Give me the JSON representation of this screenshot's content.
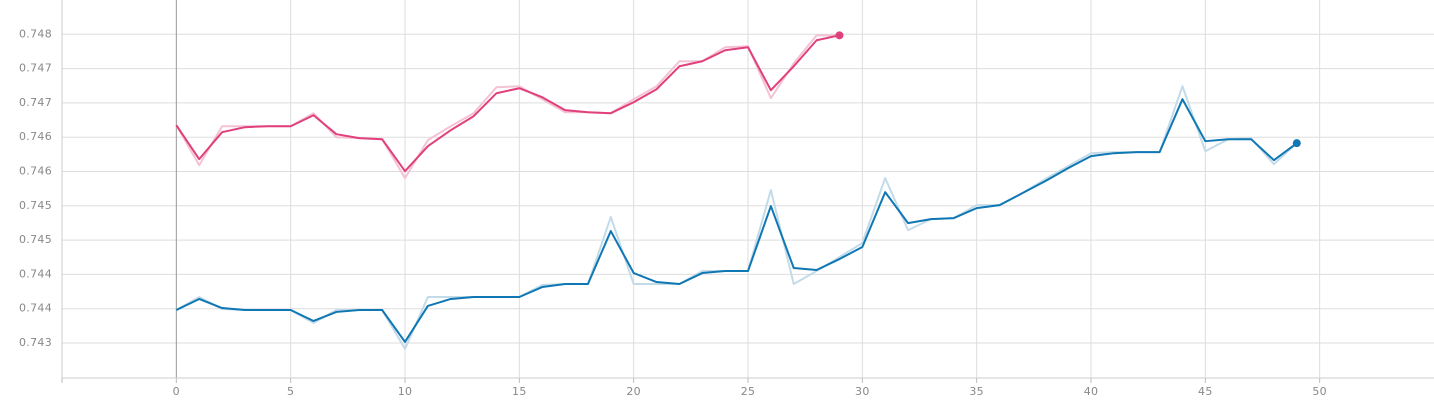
{
  "chart_data": {
    "type": "line",
    "xlim": [
      -5,
      55
    ],
    "xticks": [
      0,
      5,
      10,
      15,
      20,
      25,
      30,
      35,
      40,
      45,
      50
    ],
    "ylim": [
      0.74299,
      0.7485
    ],
    "yticks": [
      {
        "value": 0.748,
        "label": "0.748"
      },
      {
        "value": 0.7475,
        "label": "0.747"
      },
      {
        "value": 0.747,
        "label": "0.747"
      },
      {
        "value": 0.7465,
        "label": "0.746"
      },
      {
        "value": 0.746,
        "label": "0.746"
      },
      {
        "value": 0.7455,
        "label": "0.745"
      },
      {
        "value": 0.745,
        "label": "0.745"
      },
      {
        "value": 0.7445,
        "label": "0.744"
      },
      {
        "value": 0.744,
        "label": "0.744"
      },
      {
        "value": 0.7435,
        "label": "0.743"
      }
    ],
    "grid": true,
    "series": [
      {
        "color": "#f4c2d4",
        "width": 2,
        "x": [
          0,
          1,
          2,
          3,
          4,
          5,
          6,
          7,
          8,
          9,
          10,
          11,
          12,
          13,
          14,
          15,
          16,
          17,
          18,
          19,
          20,
          21,
          22,
          23,
          24,
          25,
          26,
          27,
          28,
          29
        ],
        "values": [
          0.746675,
          0.746093,
          0.74666,
          0.74666,
          0.74666,
          0.74666,
          0.74685,
          0.7465,
          0.746486,
          0.746471,
          0.745903,
          0.746457,
          0.74666,
          0.74685,
          0.747228,
          0.747243,
          0.747053,
          0.746864,
          0.746864,
          0.74685,
          0.747053,
          0.747243,
          0.747607,
          0.747607,
          0.747811,
          0.747825,
          0.747068,
          0.747578,
          0.747985,
          0.747985
        ]
      },
      {
        "color": "#c3dbe9",
        "width": 2,
        "x": [
          0,
          1,
          2,
          3,
          4,
          5,
          6,
          7,
          8,
          9,
          10,
          11,
          12,
          13,
          14,
          15,
          16,
          17,
          18,
          19,
          20,
          21,
          22,
          23,
          24,
          25,
          26,
          27,
          28,
          29,
          30,
          31,
          32,
          33,
          34,
          35,
          36,
          37,
          38,
          39,
          40,
          41,
          42,
          43,
          44,
          45,
          46,
          47,
          48,
          49
        ],
        "values": [
          0.743981,
          0.744171,
          0.743995,
          0.743981,
          0.743981,
          0.743981,
          0.743792,
          0.743981,
          0.743981,
          0.743981,
          0.743414,
          0.744171,
          0.744171,
          0.744171,
          0.744171,
          0.744171,
          0.744345,
          0.74436,
          0.74436,
          0.745336,
          0.74436,
          0.74436,
          0.74436,
          0.744549,
          0.744549,
          0.744549,
          0.745729,
          0.74436,
          0.744549,
          0.744753,
          0.744958,
          0.745904,
          0.745146,
          0.745306,
          0.745321,
          0.74551,
          0.74551,
          0.745685,
          0.745889,
          0.746078,
          0.746267,
          0.746282,
          0.746282,
          0.746282,
          0.747243,
          0.746296,
          0.746471,
          0.746485,
          0.746107,
          0.746413
        ]
      },
      {
        "color": "#e0407b",
        "width": 2,
        "end_dot": true,
        "x": [
          0,
          1,
          2,
          3,
          4,
          5,
          6,
          7,
          8,
          9,
          10,
          11,
          12,
          13,
          14,
          15,
          16,
          17,
          18,
          19,
          20,
          21,
          22,
          23,
          24,
          25,
          26,
          27,
          28,
          29
        ],
        "values": [
          0.746675,
          0.74618,
          0.746573,
          0.746646,
          0.74666,
          0.74666,
          0.74682,
          0.746544,
          0.746486,
          0.746471,
          0.746005,
          0.746369,
          0.746602,
          0.746806,
          0.747141,
          0.747214,
          0.747083,
          0.746894,
          0.746864,
          0.74685,
          0.74701,
          0.747199,
          0.747534,
          0.747607,
          0.747767,
          0.747811,
          0.747185,
          0.747534,
          0.747913,
          0.747985
        ]
      },
      {
        "color": "#0f77b3",
        "width": 2,
        "end_dot": true,
        "x": [
          0,
          1,
          2,
          3,
          4,
          5,
          6,
          7,
          8,
          9,
          10,
          11,
          12,
          13,
          14,
          15,
          16,
          17,
          18,
          19,
          20,
          21,
          22,
          23,
          24,
          25,
          26,
          27,
          28,
          29,
          30,
          31,
          32,
          33,
          34,
          35,
          36,
          37,
          38,
          39,
          40,
          41,
          42,
          43,
          44,
          45,
          46,
          47,
          48,
          49
        ],
        "values": [
          0.743981,
          0.744142,
          0.74401,
          0.743981,
          0.743981,
          0.743981,
          0.743821,
          0.743953,
          0.743981,
          0.743981,
          0.743516,
          0.74404,
          0.744142,
          0.744171,
          0.744171,
          0.744171,
          0.744316,
          0.74436,
          0.74436,
          0.745132,
          0.74452,
          0.744389,
          0.74436,
          0.74452,
          0.744549,
          0.744549,
          0.745496,
          0.744593,
          0.744564,
          0.744724,
          0.744899,
          0.745699,
          0.745248,
          0.745306,
          0.745321,
          0.745466,
          0.74551,
          0.745685,
          0.74586,
          0.746049,
          0.746224,
          0.746267,
          0.746282,
          0.746282,
          0.747054,
          0.746442,
          0.746471,
          0.746471,
          0.746165,
          0.746413
        ]
      }
    ]
  }
}
